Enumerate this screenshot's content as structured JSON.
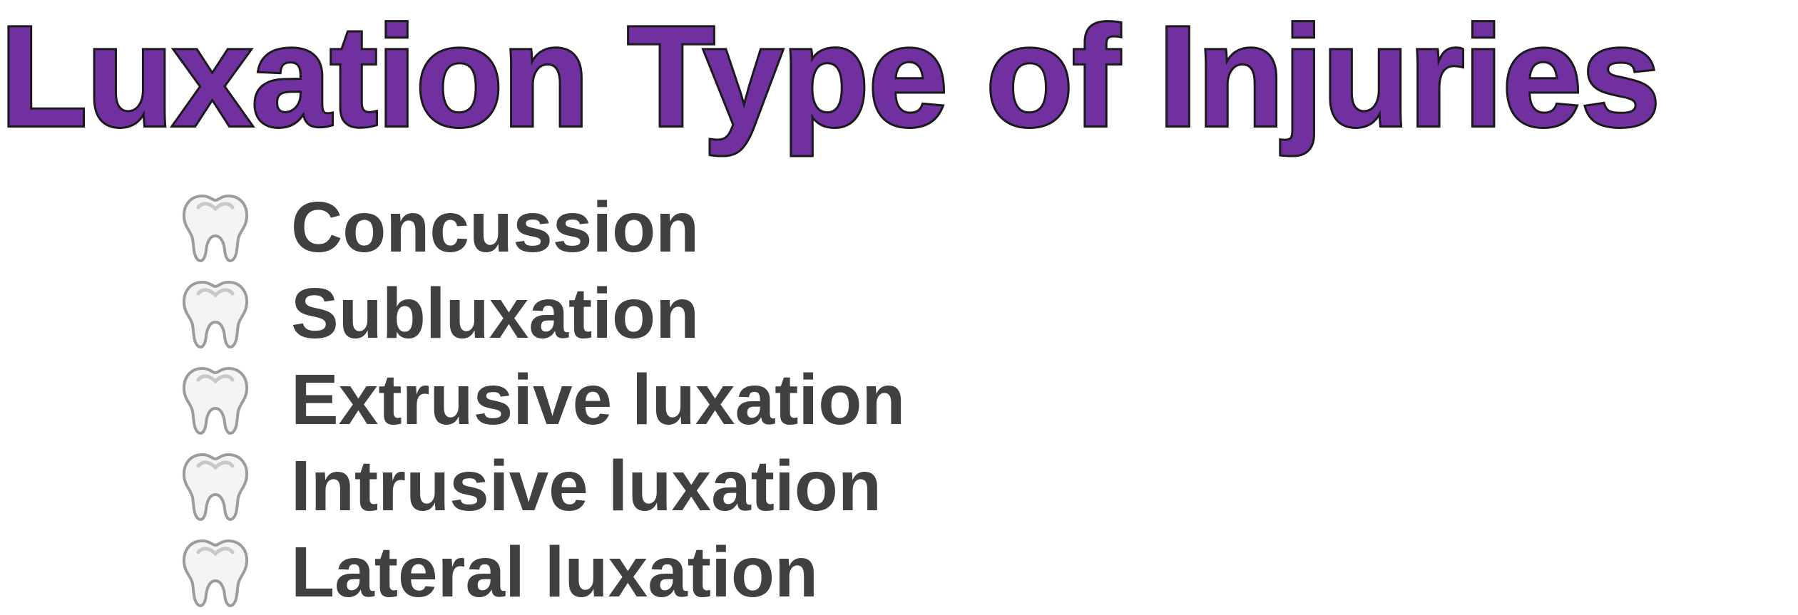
{
  "slide": {
    "title": "Luxation Type of Injuries",
    "title_color": "#7030a0",
    "text_color": "#404040",
    "bullet_icon": "tooth-icon",
    "bullets": [
      {
        "label": "Concussion"
      },
      {
        "label": "Subluxation"
      },
      {
        "label": "Extrusive luxation"
      },
      {
        "label": "Intrusive luxation"
      },
      {
        "label": "Lateral luxation"
      }
    ]
  }
}
